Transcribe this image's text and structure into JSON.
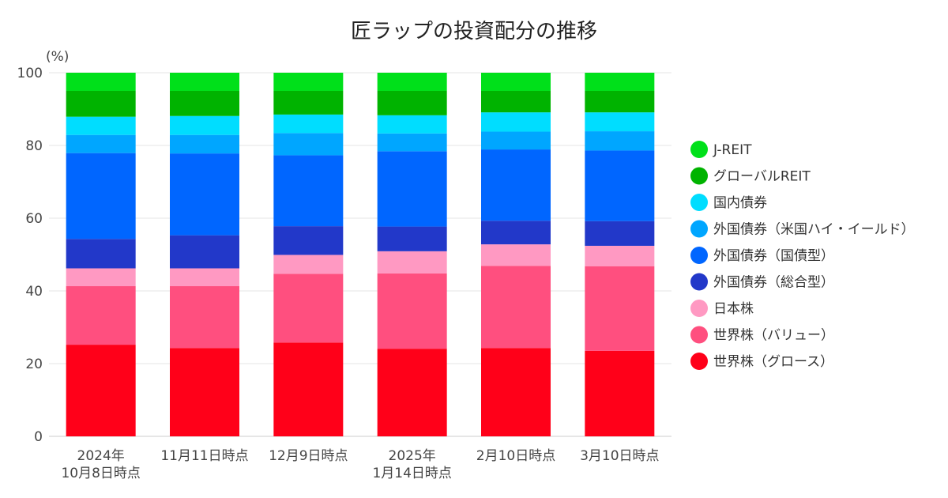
{
  "chart_data": {
    "type": "bar",
    "stacked": true,
    "title": "匠ラップの投資配分の推移",
    "ylabel": "(%)",
    "ylim": [
      0,
      100
    ],
    "yticks": [
      0,
      20,
      40,
      60,
      80,
      100
    ],
    "grid": true,
    "legend_position": "right",
    "categories": [
      [
        "2024年",
        "10月8日時点"
      ],
      [
        "11月11日時点"
      ],
      [
        "12月9日時点"
      ],
      [
        "2025年",
        "1月14日時点"
      ],
      [
        "2月10日時点"
      ],
      [
        "3月10日時点"
      ]
    ],
    "series": [
      {
        "name": "世界株（グロース）",
        "color": "#ff0019",
        "values": [
          25.2,
          24.3,
          25.8,
          24.1,
          24.3,
          23.5
        ]
      },
      {
        "name": "世界株（バリュー）",
        "color": "#ff4f7f",
        "values": [
          16.1,
          17.0,
          18.9,
          20.7,
          22.6,
          23.3
        ]
      },
      {
        "name": "日本株",
        "color": "#ff99c2",
        "values": [
          4.9,
          4.9,
          5.2,
          6.1,
          5.9,
          5.6
        ]
      },
      {
        "name": "外国債券（総合型）",
        "color": "#2238c9",
        "values": [
          8.1,
          9.1,
          7.9,
          6.8,
          6.5,
          6.8
        ]
      },
      {
        "name": "外国債券（国債型）",
        "color": "#0066ff",
        "values": [
          23.6,
          22.5,
          19.5,
          20.7,
          19.6,
          19.4
        ]
      },
      {
        "name": "外国債券（米国ハイ・イールド）",
        "color": "#00a6ff",
        "values": [
          5.0,
          5.1,
          6.1,
          4.9,
          4.9,
          5.3
        ]
      },
      {
        "name": "国内債券",
        "color": "#00ddff",
        "values": [
          5.0,
          5.2,
          5.1,
          5.0,
          5.3,
          5.2
        ]
      },
      {
        "name": "グローバルREIT",
        "color": "#00b300",
        "values": [
          7.1,
          6.9,
          6.5,
          6.7,
          5.9,
          5.9
        ]
      },
      {
        "name": "J-REIT",
        "color": "#00e01a",
        "values": [
          5.0,
          5.0,
          5.0,
          5.0,
          5.0,
          5.0
        ]
      }
    ]
  }
}
